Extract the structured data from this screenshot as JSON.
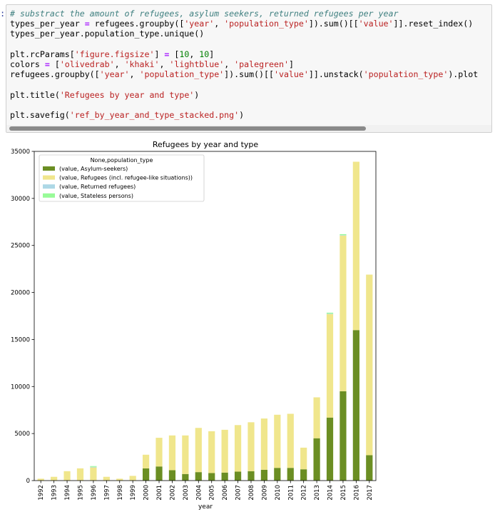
{
  "notebook": {
    "prompt_mark": ":",
    "code_lines": [
      [
        {
          "t": "# substract the amount of refugees, asylum seekers, returned refugees per year",
          "c": "comment"
        }
      ],
      [
        {
          "t": "types_per_year ",
          "c": "plain"
        },
        {
          "t": "=",
          "c": "op"
        },
        {
          "t": " refugees.groupby([",
          "c": "plain"
        },
        {
          "t": "'year'",
          "c": "string"
        },
        {
          "t": ", ",
          "c": "plain"
        },
        {
          "t": "'population_type'",
          "c": "string"
        },
        {
          "t": "]).sum()[[",
          "c": "plain"
        },
        {
          "t": "'value'",
          "c": "string"
        },
        {
          "t": "]].reset_index()",
          "c": "plain"
        }
      ],
      [
        {
          "t": "types_per_year.population_type.unique()",
          "c": "plain"
        }
      ],
      [
        {
          "t": "",
          "c": "plain"
        }
      ],
      [
        {
          "t": "plt.rcParams[",
          "c": "plain"
        },
        {
          "t": "'figure.figsize'",
          "c": "string"
        },
        {
          "t": "] ",
          "c": "plain"
        },
        {
          "t": "=",
          "c": "op"
        },
        {
          "t": " [",
          "c": "plain"
        },
        {
          "t": "10",
          "c": "number"
        },
        {
          "t": ", ",
          "c": "plain"
        },
        {
          "t": "10",
          "c": "number"
        },
        {
          "t": "]",
          "c": "plain"
        }
      ],
      [
        {
          "t": "colors ",
          "c": "plain"
        },
        {
          "t": "=",
          "c": "op"
        },
        {
          "t": " [",
          "c": "plain"
        },
        {
          "t": "'olivedrab'",
          "c": "string"
        },
        {
          "t": ", ",
          "c": "plain"
        },
        {
          "t": "'khaki'",
          "c": "string"
        },
        {
          "t": ", ",
          "c": "plain"
        },
        {
          "t": "'lightblue'",
          "c": "string"
        },
        {
          "t": ", ",
          "c": "plain"
        },
        {
          "t": "'palegreen'",
          "c": "string"
        },
        {
          "t": "]",
          "c": "plain"
        }
      ],
      [
        {
          "t": "refugees.groupby([",
          "c": "plain"
        },
        {
          "t": "'year'",
          "c": "string"
        },
        {
          "t": ", ",
          "c": "plain"
        },
        {
          "t": "'population_type'",
          "c": "string"
        },
        {
          "t": "]).sum()[[",
          "c": "plain"
        },
        {
          "t": "'value'",
          "c": "string"
        },
        {
          "t": "]].unstack(",
          "c": "plain"
        },
        {
          "t": "'population_type'",
          "c": "string"
        },
        {
          "t": ").plot",
          "c": "plain"
        }
      ],
      [
        {
          "t": "",
          "c": "plain"
        }
      ],
      [
        {
          "t": "plt.title(",
          "c": "plain"
        },
        {
          "t": "'Refugees by year and type'",
          "c": "string"
        },
        {
          "t": ")",
          "c": "plain"
        }
      ],
      [
        {
          "t": "",
          "c": "plain"
        }
      ],
      [
        {
          "t": "plt.savefig(",
          "c": "plain"
        },
        {
          "t": "'ref_by_year_and_type_stacked.png'",
          "c": "string"
        },
        {
          "t": ")",
          "c": "plain"
        }
      ]
    ]
  },
  "chart_data": {
    "type": "bar",
    "stacked": true,
    "title": "Refugees by year and type",
    "xlabel": "year",
    "ylabel": "",
    "ylim": [
      0,
      35000
    ],
    "yticks": [
      0,
      5000,
      10000,
      15000,
      20000,
      25000,
      30000,
      35000
    ],
    "legend_title": "None,population_type",
    "legend_position": "upper-left",
    "grid": false,
    "categories": [
      "1992",
      "1993",
      "1994",
      "1995",
      "1996",
      "1997",
      "1998",
      "1999",
      "2000",
      "2001",
      "2002",
      "2003",
      "2004",
      "2005",
      "2006",
      "2007",
      "2008",
      "2009",
      "2010",
      "2011",
      "2012",
      "2013",
      "2014",
      "2015",
      "2016",
      "2017"
    ],
    "series": [
      {
        "name": "(value, Asylum-seekers)",
        "color": "#6b8e23",
        "values": [
          0,
          0,
          0,
          0,
          0,
          0,
          0,
          0,
          1300,
          1500,
          1100,
          700,
          900,
          800,
          850,
          950,
          1000,
          1150,
          1350,
          1350,
          1200,
          4500,
          6700,
          9500,
          16000,
          2700
        ]
      },
      {
        "name": "(value, Refugees (incl. refugee-like situations))",
        "color": "#f0e68c",
        "values": [
          200,
          400,
          1000,
          1300,
          1400,
          400,
          200,
          500,
          1450,
          3050,
          3700,
          4100,
          4700,
          4450,
          4550,
          4950,
          5200,
          5450,
          5650,
          5750,
          2300,
          4350,
          11000,
          16550,
          17900,
          19200
        ]
      },
      {
        "name": "(value, Returned refugees)",
        "color": "#add8e6",
        "values": [
          0,
          0,
          0,
          0,
          60,
          0,
          0,
          0,
          0,
          0,
          0,
          0,
          0,
          0,
          0,
          0,
          0,
          0,
          0,
          0,
          0,
          0,
          50,
          50,
          0,
          0
        ]
      },
      {
        "name": "(value, Stateless persons)",
        "color": "#98fb98",
        "values": [
          0,
          0,
          0,
          0,
          80,
          0,
          0,
          0,
          0,
          0,
          0,
          0,
          0,
          0,
          0,
          0,
          0,
          0,
          0,
          0,
          0,
          0,
          100,
          100,
          0,
          0
        ]
      }
    ]
  }
}
